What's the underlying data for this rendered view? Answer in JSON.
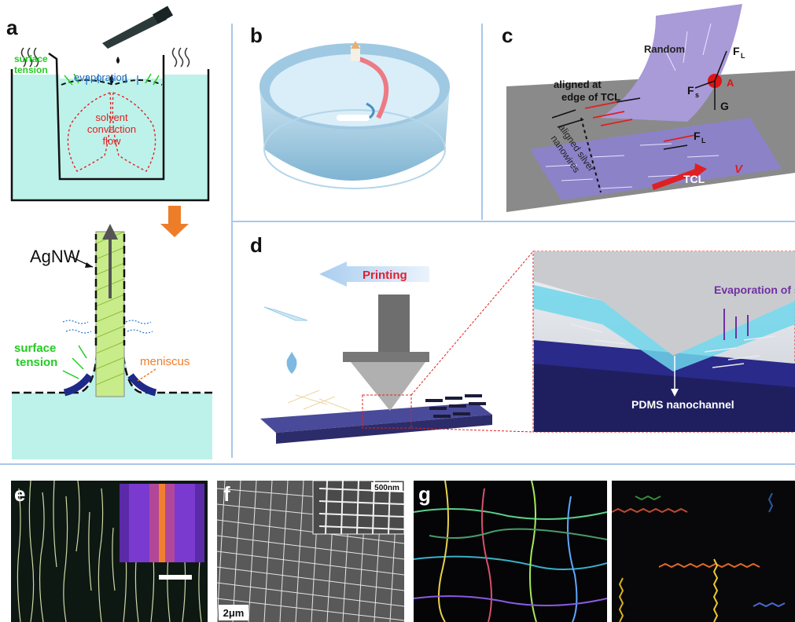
{
  "panels": {
    "a": {
      "label": "a",
      "surface_tension_top": [
        "surface",
        "tension"
      ],
      "evaporation": "evaporation",
      "convection": [
        "solvent",
        "convection",
        "flow"
      ],
      "agnw": "AgNW",
      "surface_tension_bottom": [
        "surface",
        "tension"
      ],
      "meniscus": "meniscus"
    },
    "b": {
      "label": "b"
    },
    "c": {
      "label": "c",
      "random": "Random",
      "aligned_edge": [
        "aligned at",
        "edge of TCL"
      ],
      "aligned_silver": [
        "aligned silver",
        "nanowires"
      ],
      "force_fl": "F",
      "force_fl_sub": "L",
      "force_fs": "F",
      "force_fs_sub": "s",
      "force_g": "G",
      "point_a": "A",
      "tcl": "TCL",
      "velocity": "V"
    },
    "d": {
      "label": "d",
      "printing": "Printing",
      "evaporation": "Evaporation of solvent",
      "nanochannel": "PDMS nanochannel"
    },
    "e": {
      "label": "e"
    },
    "f": {
      "label": "f",
      "inset_scale": "500nm",
      "scale": "2μm"
    },
    "g": {
      "label": "g"
    }
  },
  "colors": {
    "divider": "#a8c8e8",
    "water": "#bdf2ea",
    "label_green": "#22cc22",
    "label_blue": "#2266bb",
    "arrow_red": "#e02020",
    "orange": "#ee7d2a",
    "purple": "#7030a0"
  }
}
